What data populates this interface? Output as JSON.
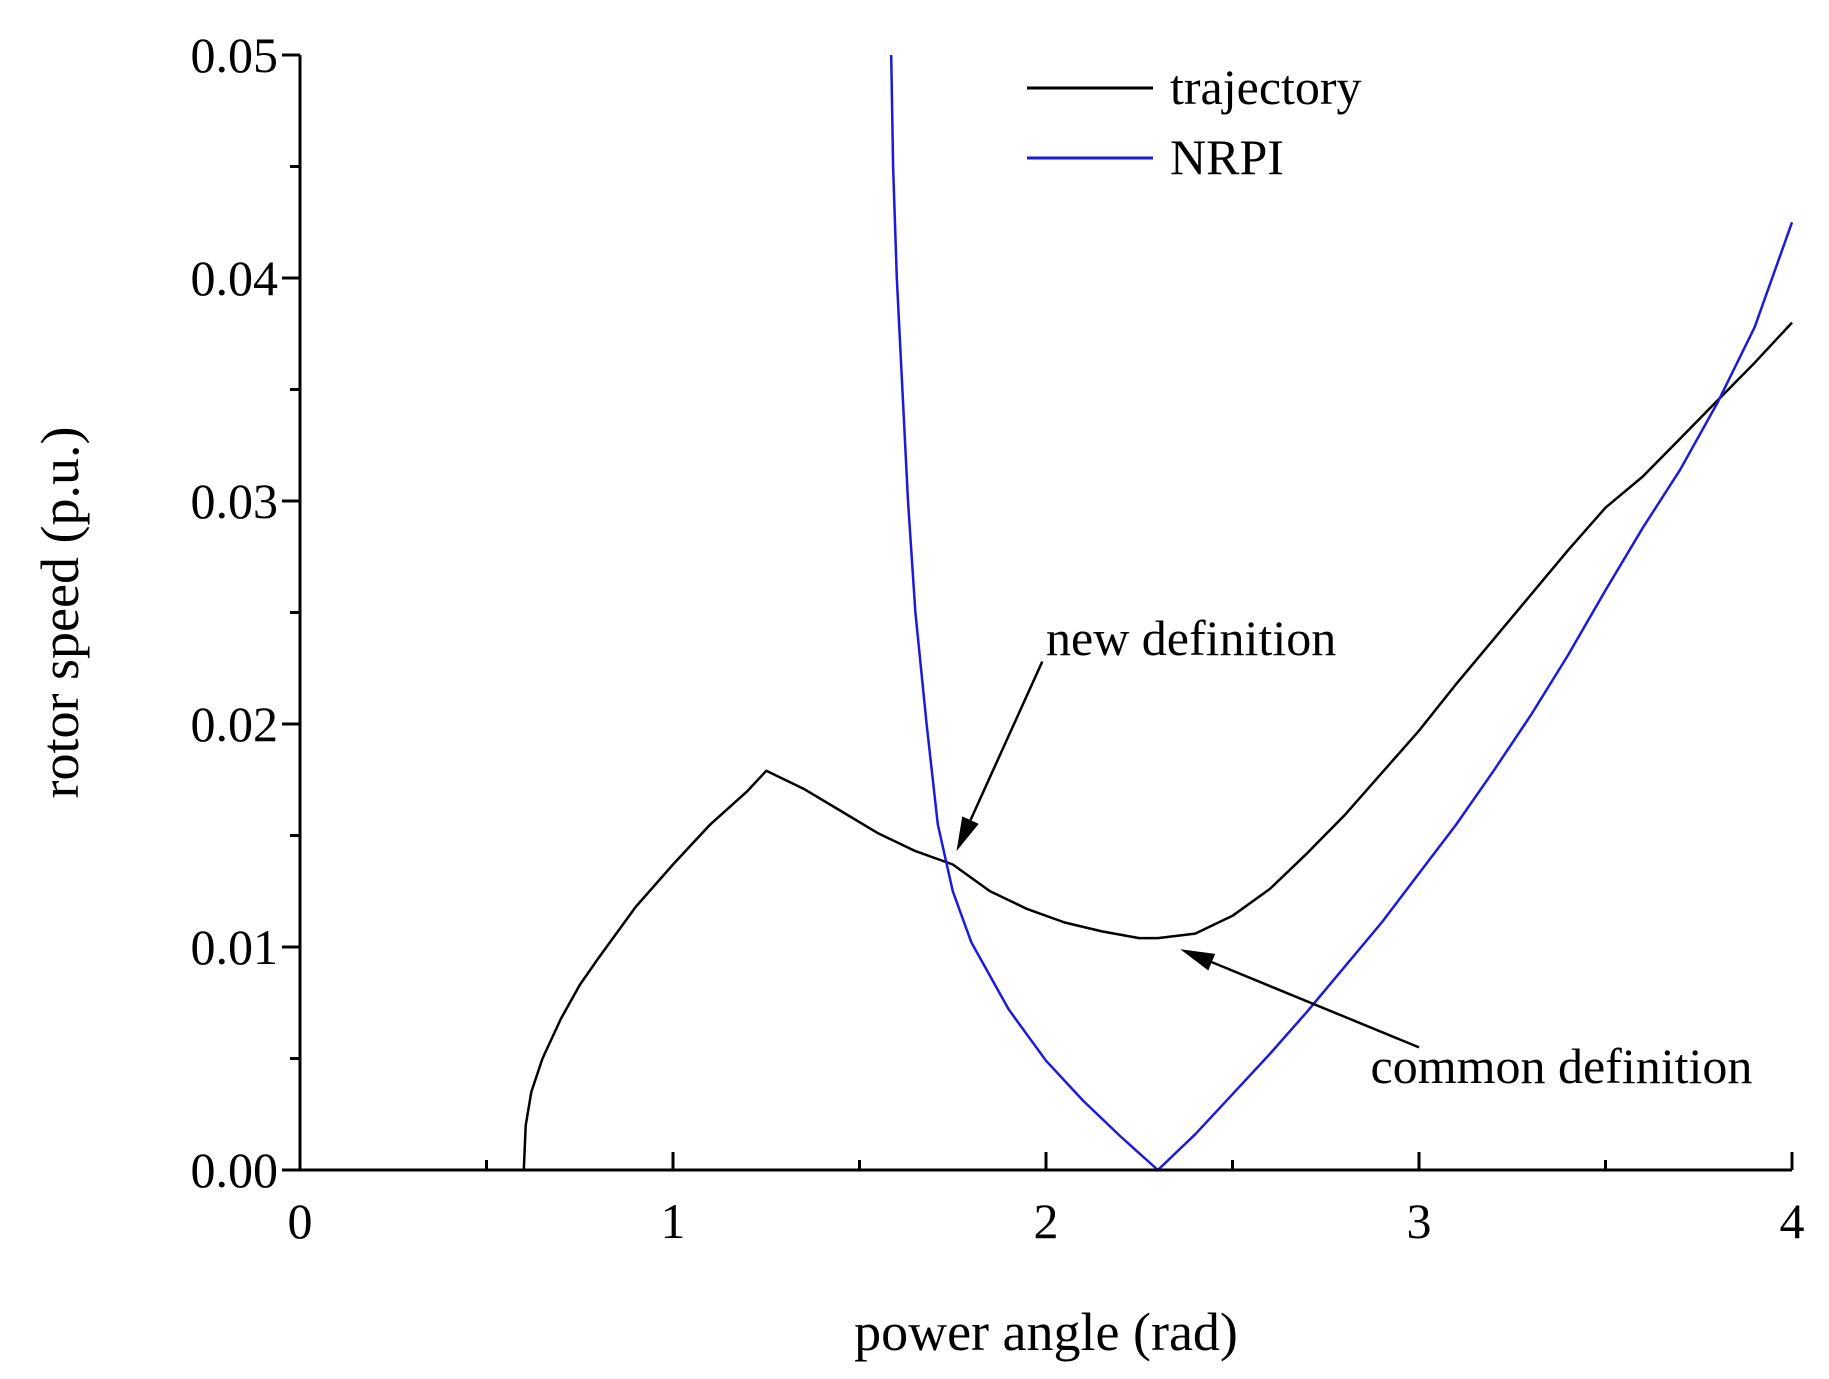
{
  "chart_data": {
    "type": "line",
    "xlabel": "power angle (rad)",
    "ylabel": "rotor speed (p.u.)",
    "xlim": [
      0,
      4
    ],
    "ylim": [
      0,
      0.05
    ],
    "x_ticks": [
      {
        "value": 0,
        "label": "0"
      },
      {
        "value": 1,
        "label": "1"
      },
      {
        "value": 2,
        "label": "2"
      },
      {
        "value": 3,
        "label": "3"
      },
      {
        "value": 4,
        "label": "4"
      }
    ],
    "x_minor_ticks": [
      0.5,
      1.5,
      2.5,
      3.5
    ],
    "y_ticks": [
      {
        "value": 0,
        "label": "0.00"
      },
      {
        "value": 0.01,
        "label": "0.01"
      },
      {
        "value": 0.02,
        "label": "0.02"
      },
      {
        "value": 0.03,
        "label": "0.03"
      },
      {
        "value": 0.04,
        "label": "0.04"
      },
      {
        "value": 0.05,
        "label": "0.05"
      }
    ],
    "y_minor_ticks": [
      0.005,
      0.015,
      0.025,
      0.035,
      0.045
    ],
    "grid": false,
    "legend_position": "top-right",
    "series": [
      {
        "name": "trajectory",
        "color": "#000000",
        "points": [
          [
            0.6,
            0.0
          ],
          [
            0.605,
            0.002
          ],
          [
            0.62,
            0.0035
          ],
          [
            0.65,
            0.005
          ],
          [
            0.7,
            0.0068
          ],
          [
            0.75,
            0.0083
          ],
          [
            0.8,
            0.0095
          ],
          [
            0.9,
            0.0118
          ],
          [
            1.0,
            0.0137
          ],
          [
            1.1,
            0.0155
          ],
          [
            1.2,
            0.017
          ],
          [
            1.25,
            0.0179
          ],
          [
            1.35,
            0.0171
          ],
          [
            1.45,
            0.0161
          ],
          [
            1.55,
            0.0151
          ],
          [
            1.65,
            0.0143
          ],
          [
            1.75,
            0.0137
          ],
          [
            1.85,
            0.0125
          ],
          [
            1.95,
            0.0117
          ],
          [
            2.05,
            0.0111
          ],
          [
            2.15,
            0.0107
          ],
          [
            2.25,
            0.0104
          ],
          [
            2.3,
            0.0104
          ],
          [
            2.4,
            0.0106
          ],
          [
            2.5,
            0.0114
          ],
          [
            2.6,
            0.0126
          ],
          [
            2.7,
            0.0142
          ],
          [
            2.8,
            0.0159
          ],
          [
            2.9,
            0.0178
          ],
          [
            3.0,
            0.0197
          ],
          [
            3.1,
            0.0218
          ],
          [
            3.2,
            0.0238
          ],
          [
            3.3,
            0.0258
          ],
          [
            3.4,
            0.0278
          ],
          [
            3.5,
            0.0297
          ],
          [
            3.6,
            0.0311
          ],
          [
            3.7,
            0.0328
          ],
          [
            3.8,
            0.0345
          ],
          [
            3.9,
            0.0362
          ],
          [
            4.0,
            0.038
          ]
        ]
      },
      {
        "name": "NRPI",
        "color": "#1a1adc",
        "points": [
          [
            1.585,
            0.05
          ],
          [
            1.59,
            0.045
          ],
          [
            1.6,
            0.04
          ],
          [
            1.615,
            0.035
          ],
          [
            1.63,
            0.03
          ],
          [
            1.65,
            0.025
          ],
          [
            1.68,
            0.02
          ],
          [
            1.71,
            0.0155
          ],
          [
            1.75,
            0.0125
          ],
          [
            1.8,
            0.0102
          ],
          [
            1.9,
            0.0072
          ],
          [
            2.0,
            0.0049
          ],
          [
            2.1,
            0.0031
          ],
          [
            2.2,
            0.0015
          ],
          [
            2.3,
            0.0
          ],
          [
            2.4,
            0.0016
          ],
          [
            2.5,
            0.0034
          ],
          [
            2.6,
            0.0052
          ],
          [
            2.7,
            0.0071
          ],
          [
            2.8,
            0.0091
          ],
          [
            2.9,
            0.0111
          ],
          [
            3.0,
            0.0133
          ],
          [
            3.1,
            0.0155
          ],
          [
            3.2,
            0.0179
          ],
          [
            3.3,
            0.0204
          ],
          [
            3.4,
            0.0231
          ],
          [
            3.5,
            0.026
          ],
          [
            3.6,
            0.0288
          ],
          [
            3.7,
            0.0314
          ],
          [
            3.8,
            0.0344
          ],
          [
            3.9,
            0.0378
          ],
          [
            4.0,
            0.0425
          ]
        ]
      }
    ],
    "annotations": [
      {
        "text": "new definition",
        "text_pos": [
          2.0,
          0.0231
        ],
        "arrow_from": [
          1.99,
          0.0228
        ],
        "arrow_to": [
          1.76,
          0.0143
        ]
      },
      {
        "text": "common definition",
        "text_pos": [
          2.87,
          0.0039
        ],
        "arrow_from": [
          3.0,
          0.0055
        ],
        "arrow_to": [
          2.36,
          0.0099
        ]
      }
    ]
  }
}
